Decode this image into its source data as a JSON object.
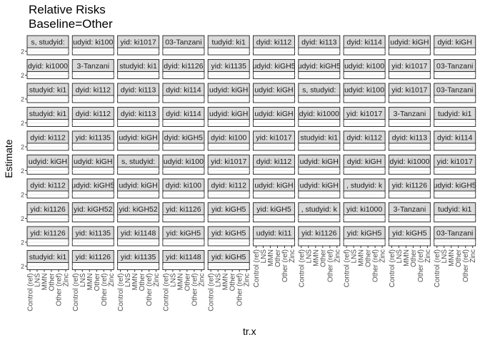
{
  "chart_data": {
    "type": "scatter",
    "title": "Relative Risks",
    "subtitle": "Baseline=Other",
    "xlabel": "tr.x",
    "ylabel": "Estimate",
    "y_tick": "2",
    "x_tick_labels": [
      "Control (ref)",
      "LNS",
      "MMN",
      "Other",
      "Other (ref)",
      "Zinc"
    ],
    "facet_columns": 10,
    "facet_rows": 10,
    "panels_drawn": 95,
    "axis_columns": [
      {
        "col": 0,
        "labels": [
          "Control (ref)",
          "LNS",
          "MMN",
          "Other",
          "Other (ref)",
          "Zinc"
        ]
      },
      {
        "col": 1,
        "labels": [
          "Control (ref)",
          "LNS",
          "MMN",
          "Other",
          "Other (ref)",
          "Zinc"
        ]
      },
      {
        "col": 2,
        "labels": [
          "Control (ref)",
          "LNS",
          "MMN",
          "Other",
          "Other (ref)",
          "Zinc"
        ]
      },
      {
        "col": 3,
        "labels": [
          "Control (ref)",
          "LNS",
          "MMN",
          "Other",
          "Other (ref)",
          "Zinc"
        ]
      },
      {
        "col": 4,
        "labels": [
          "Control (ref)",
          "LNS",
          "MMN",
          "Other",
          "Other (ref)",
          "Zinc"
        ]
      },
      {
        "col": 5,
        "labels": [
          "Control (ref)",
          "LNS",
          "MMN",
          "Other",
          "Other (ref)",
          "Zinc"
        ]
      },
      {
        "col": 6,
        "labels": [
          "Control (ref)",
          "LNS",
          "MMN",
          "Other",
          "Other (ref)",
          "Zinc"
        ]
      },
      {
        "col": 7,
        "labels": [
          "Control (ref)",
          "LNS",
          "MMN",
          "Other",
          "Other (ref)",
          "Zinc"
        ]
      },
      {
        "col": 8,
        "labels": [
          "Control (ref)",
          "LNS",
          "MMN",
          "Other",
          "Other (ref)",
          "Zinc"
        ]
      },
      {
        "col": 9,
        "labels": [
          "Control (ref)",
          "LNS",
          "MMN",
          "Other",
          "Other (ref)",
          "Zinc"
        ]
      }
    ],
    "strips": [
      [
        "s, studyid:",
        "udyid: ki100",
        "yid: ki1017",
        "03-Tanzani",
        "tudyid: ki1",
        "dyid: ki112",
        "dyid: ki113",
        "dyid: ki114",
        "udyid: kiGH",
        "dyid: kiGH"
      ],
      [
        "dyid: ki1000",
        "3-Tanzani",
        "studyid: ki1",
        "dyid: ki1126",
        "yid: ki1135",
        "udyid: kiGH5",
        "udyid: kiGH5",
        "udyid: ki100",
        "yid: ki1017",
        "03-Tanzani"
      ],
      [
        "studyid: ki1",
        "dyid: ki112",
        "dyid: ki113",
        "dyid: ki114",
        "udyid: kiGH",
        "udyid: kiGH",
        "s, studyid:",
        "udyid: ki100",
        "yid: ki1017",
        "03-Tanzani"
      ],
      [
        "studyid: ki1",
        "dyid: ki112",
        "dyid: ki113",
        "dyid: ki114",
        "udyid: kiGH",
        "udyid: kiGH",
        "dyid: ki1000",
        "yid: ki1017",
        "3-Tanzani",
        "tudyid: ki1"
      ],
      [
        "dyid: ki112",
        "yid: ki1135",
        "udyid: kiGH",
        "dyid: kiGH5",
        "dyid: ki100",
        "yid: ki1017",
        "studyid: ki1",
        "dyid: ki112",
        "dyid: ki113",
        "dyid: ki114"
      ],
      [
        "udyid: kiGH",
        "udyid: kiGH",
        "s, studyid:",
        "udyid: ki100",
        "yid: ki1017",
        "dyid: ki112",
        "udyid: kiGH",
        "dyid: kiGH",
        "dyid: ki1000",
        "yid: ki1017"
      ],
      [
        "dyid: ki112",
        "udyid: kiGH5",
        "udyid: kiGH",
        "dyid: ki100",
        "dyid: ki112",
        "udyid: kiGH",
        "udyid: kiGH",
        ", studyid: k",
        "yid: ki1126",
        "udyid: kiGH5"
      ],
      [
        "yid: ki1126",
        "yid: kiGH52",
        "yid: kiGH52",
        "yid: ki1126",
        "yid: kiGH5",
        "yid: kiGH5",
        ", studyid: k",
        "yid: ki1000",
        "3-Tanzani",
        "tudyid: ki1"
      ],
      [
        "yid: ki1126",
        "yid: ki1135",
        "yid: ki1148",
        "yid: kiGH5",
        "yid: kiGH5",
        "udyid: ki11",
        "yid: ki1126",
        "yid: kiGH5",
        "yid: kiGH5",
        "03-Tanzani"
      ],
      [
        "studyid: ki1",
        "yid: ki1126",
        "yid: ki1135",
        "yid: ki1148",
        "yid: kiGH5",
        "yid: kiGH5",
        "",
        "",
        "",
        ""
      ]
    ]
  }
}
